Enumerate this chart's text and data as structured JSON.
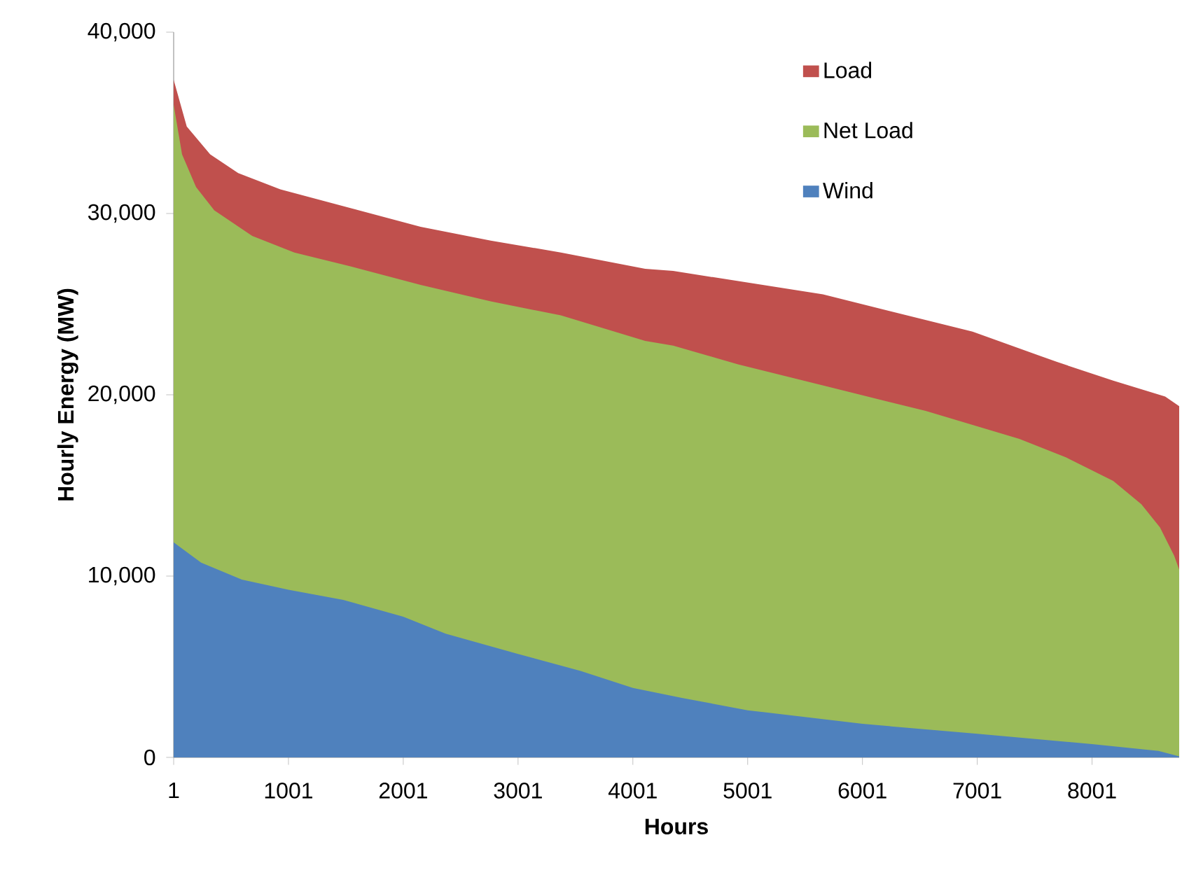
{
  "chart_data": {
    "type": "area",
    "xlabel": "Hours",
    "ylabel": "Hourly Energy (MW)",
    "xlim": [
      1,
      8760
    ],
    "xticks": [
      1,
      1001,
      2001,
      3001,
      4001,
      5001,
      6001,
      7001,
      8001
    ],
    "ylim": [
      0,
      40000
    ],
    "yticks": [
      {
        "value": 0,
        "label": "0"
      },
      {
        "value": 10000,
        "label": "10,000"
      },
      {
        "value": 20000,
        "label": "20,000"
      },
      {
        "value": 30000,
        "label": "30,000"
      },
      {
        "value": 40000,
        "label": "40,000"
      }
    ],
    "grid": false,
    "legend": "top right",
    "series": [
      {
        "name": "Load",
        "color": "#c0504d",
        "x": [
          1,
          115,
          319,
          563,
          930,
          1541,
          2152,
          2763,
          3374,
          4108,
          4352,
          5657,
          6960,
          7696,
          8185,
          8638,
          8760
        ],
        "values": [
          37370,
          34800,
          33260,
          32230,
          31330,
          30300,
          29270,
          28500,
          27850,
          26950,
          26830,
          25540,
          23480,
          21810,
          20780,
          19900,
          19370
        ]
      },
      {
        "name": "Net Load",
        "color": "#9bbb59",
        "x": [
          1,
          74,
          196,
          355,
          685,
          1052,
          1541,
          2152,
          2763,
          3374,
          4108,
          4352,
          4917,
          5734,
          6552,
          7368,
          7776,
          8185,
          8430,
          8593,
          8716,
          8760
        ],
        "values": [
          36000,
          33260,
          31460,
          30170,
          28760,
          27850,
          27080,
          26060,
          25150,
          24380,
          22970,
          22710,
          21680,
          20390,
          19110,
          17570,
          16540,
          15250,
          13970,
          12680,
          11130,
          10360
        ]
      },
      {
        "name": "Wind",
        "color": "#4f81bd",
        "x": [
          1,
          240,
          595,
          1001,
          1478,
          2001,
          2370,
          3001,
          3546,
          4001,
          4435,
          5001,
          6001,
          7001,
          8001,
          8580,
          8760
        ],
        "values": [
          11860,
          10740,
          9810,
          9250,
          8690,
          7760,
          6820,
          5700,
          4770,
          3830,
          3270,
          2600,
          1850,
          1300,
          730,
          360,
          60
        ]
      }
    ]
  }
}
